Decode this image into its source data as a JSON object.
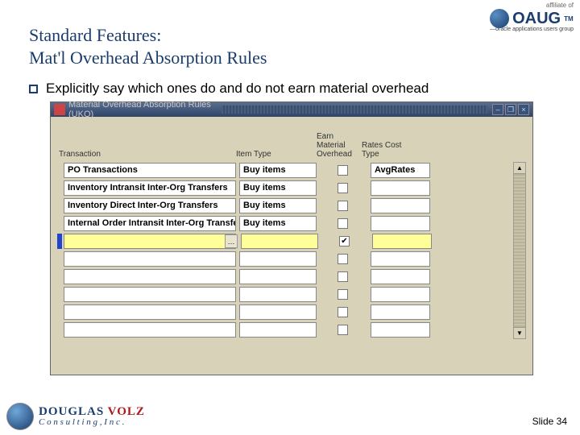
{
  "slide": {
    "title_line1": "Standard Features:",
    "title_line2": "Mat'l Overhead Absorption Rules",
    "bullet": "Explicitly say which ones do and do not earn material overhead",
    "number_label": "Slide 34"
  },
  "top_logo": {
    "affiliate": "affiliate of",
    "name": "OAUG",
    "tm": "TM",
    "tagline": "—oracle applications users group"
  },
  "bottom_logo": {
    "line1a": "DOUGLAS",
    "line1b": "VOLZ",
    "line2": "C o n s u l t i n g ,  I n c ."
  },
  "window": {
    "title": "Material Overhead Absorption Rules (UKO)",
    "headers": {
      "transaction": "Transaction",
      "item_type": "Item Type",
      "earn": "Earn Material Overhead",
      "rates": "Rates Cost Type"
    },
    "rows": [
      {
        "transaction": "PO Transactions",
        "item_type": "Buy items",
        "earn": false,
        "rates": "AvgRates",
        "active": false,
        "highlight": false
      },
      {
        "transaction": "Inventory Intransit Inter-Org Transfers",
        "item_type": "Buy items",
        "earn": false,
        "rates": "",
        "active": false,
        "highlight": false
      },
      {
        "transaction": "Inventory Direct Inter-Org Transfers",
        "item_type": "Buy items",
        "earn": false,
        "rates": "",
        "active": false,
        "highlight": false
      },
      {
        "transaction": "Internal Order Intransit Inter-Org Transfers",
        "item_type": "Buy items",
        "earn": false,
        "rates": "",
        "active": false,
        "highlight": false
      },
      {
        "transaction": "",
        "item_type": "",
        "earn": true,
        "rates": "",
        "active": true,
        "highlight": true
      },
      {
        "transaction": "",
        "item_type": "",
        "earn": false,
        "rates": "",
        "active": false,
        "highlight": false
      },
      {
        "transaction": "",
        "item_type": "",
        "earn": false,
        "rates": "",
        "active": false,
        "highlight": false
      },
      {
        "transaction": "",
        "item_type": "",
        "earn": false,
        "rates": "",
        "active": false,
        "highlight": false
      },
      {
        "transaction": "",
        "item_type": "",
        "earn": false,
        "rates": "",
        "active": false,
        "highlight": false
      },
      {
        "transaction": "",
        "item_type": "",
        "earn": false,
        "rates": "",
        "active": false,
        "highlight": false
      }
    ],
    "lov_label": "…"
  },
  "colors": {
    "title_color": "#1a3d6d",
    "window_bg": "#d7d2b8",
    "highlight_bg": "#ffff99",
    "active_marker": "#2244cc"
  }
}
